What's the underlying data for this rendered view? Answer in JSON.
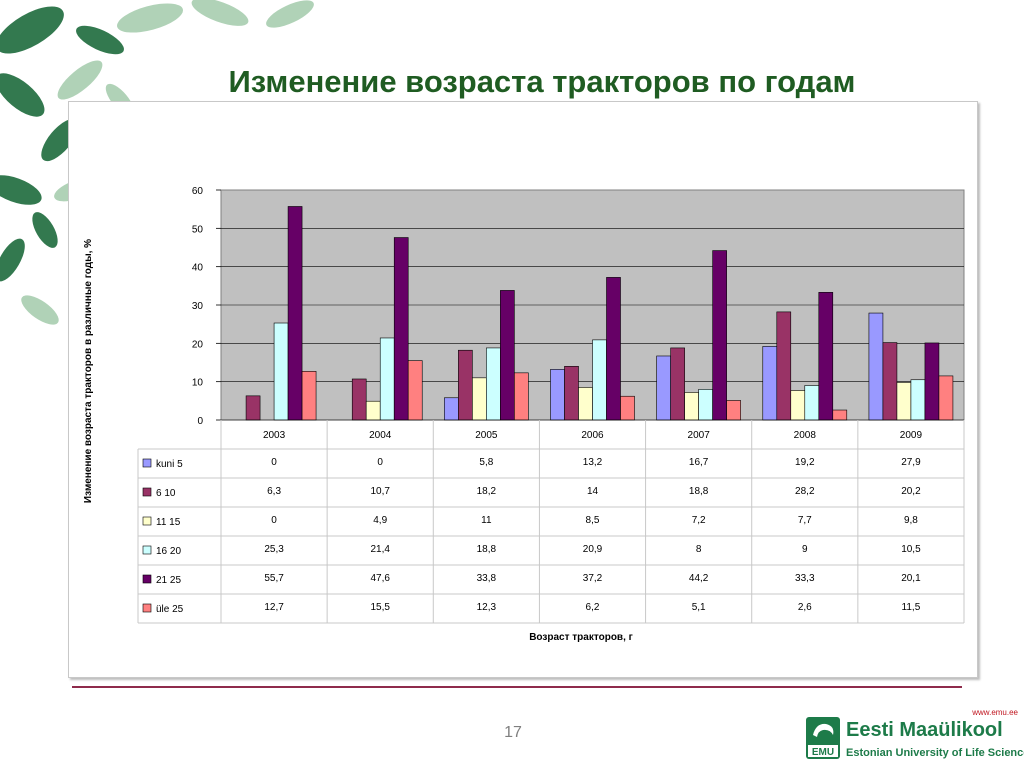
{
  "slide": {
    "title": "Изменение возраста тракторов по годам",
    "page_number": "17",
    "logo": {
      "url": "www.emu.ee",
      "name": "Eesti Maaülikool",
      "subtitle": "Estonian University of Life Sciences",
      "mark": "EMU"
    }
  },
  "colors": {
    "title": "#1f5c22",
    "plot_background": "#c0c0c0",
    "accent_line": "#8e2b4b"
  },
  "chart_data": {
    "type": "bar",
    "title": "",
    "xlabel": "Возраст тракторов, г",
    "ylabel": "Изменение возраста тракторов в различные годы, %",
    "ylim": [
      0,
      60
    ],
    "yticks": [
      0,
      10,
      20,
      30,
      40,
      50,
      60
    ],
    "grid": true,
    "legend": "data-table-left",
    "categories": [
      "2003",
      "2004",
      "2005",
      "2006",
      "2007",
      "2008",
      "2009"
    ],
    "series": [
      {
        "name": "kuni 5",
        "color": "#9999ff",
        "values": [
          0,
          0,
          5.8,
          13.2,
          16.7,
          19.2,
          27.9
        ],
        "labels": [
          "0",
          "0",
          "5,8",
          "13,2",
          "16,7",
          "19,2",
          "27,9"
        ]
      },
      {
        "name": "6      10",
        "color": "#993366",
        "values": [
          6.3,
          10.7,
          18.2,
          14,
          18.8,
          28.2,
          20.2
        ],
        "labels": [
          "6,3",
          "10,7",
          "18,2",
          "14",
          "18,8",
          "28,2",
          "20,2"
        ]
      },
      {
        "name": "11      15",
        "color": "#ffffcc",
        "values": [
          0,
          4.9,
          11,
          8.5,
          7.2,
          7.7,
          9.8
        ],
        "labels": [
          "0",
          "4,9",
          "11",
          "8,5",
          "7,2",
          "7,7",
          "9,8"
        ]
      },
      {
        "name": "16      20",
        "color": "#ccffff",
        "values": [
          25.3,
          21.4,
          18.8,
          20.9,
          8,
          9,
          10.5
        ],
        "labels": [
          "25,3",
          "21,4",
          "18,8",
          "20,9",
          "8",
          "9",
          "10,5"
        ]
      },
      {
        "name": "21      25",
        "color": "#660066",
        "values": [
          55.7,
          47.6,
          33.8,
          37.2,
          44.2,
          33.3,
          20.1
        ],
        "labels": [
          "55,7",
          "47,6",
          "33,8",
          "37,2",
          "44,2",
          "33,3",
          "20,1"
        ]
      },
      {
        "name": "üle    25",
        "color": "#ff8080",
        "values": [
          12.7,
          15.5,
          12.3,
          6.2,
          5.1,
          2.6,
          11.5
        ],
        "labels": [
          "12,7",
          "15,5",
          "12,3",
          "6,2",
          "5,1",
          "2,6",
          "11,5"
        ]
      }
    ]
  }
}
